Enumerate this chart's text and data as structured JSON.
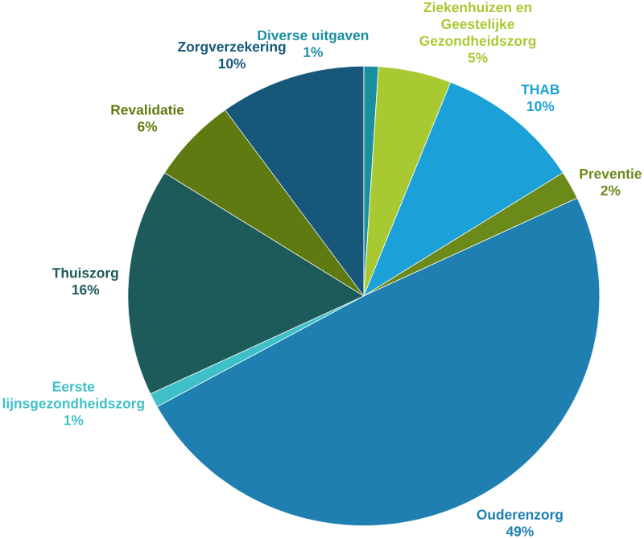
{
  "chart_data": {
    "type": "pie",
    "categories": [
      "Diverse uitgaven",
      "Ziekenhuizen en Geestelijke Gezondheidszorg",
      "THAB",
      "Preventie",
      "Ouderenzorg",
      "Eerste lijnsgezondheidszorg",
      "Thuiszorg",
      "Revalidatie",
      "Zorgverzekering"
    ],
    "values": [
      1,
      5,
      10,
      2,
      49,
      1,
      16,
      6,
      10
    ],
    "colors": [
      "#1a8fa0",
      "#a8c932",
      "#1ba0d8",
      "#6b8a1a",
      "#1e7fb0",
      "#3fc0c8",
      "#1d5a5a",
      "#5e7a10",
      "#17577a"
    ],
    "value_labels": [
      "1%",
      "5%",
      "10%",
      "2%",
      "49%",
      "1%",
      "16%",
      "6%",
      "10%"
    ]
  }
}
